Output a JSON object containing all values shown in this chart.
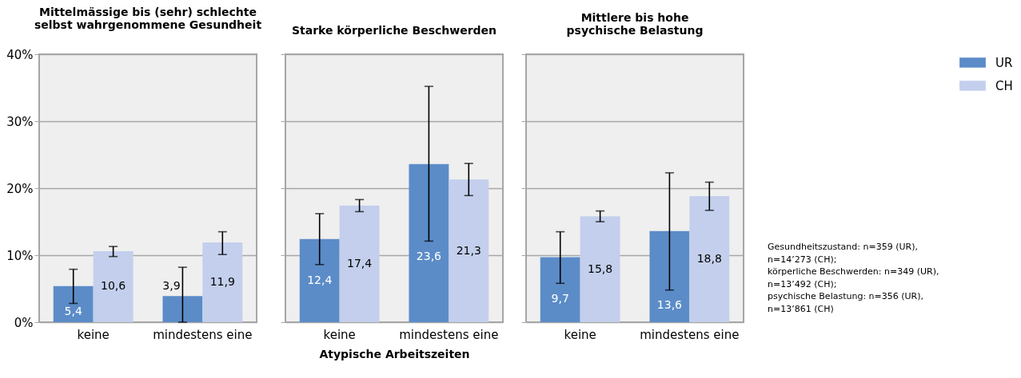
{
  "chart_data": [
    {
      "type": "bar",
      "title": "Mittelmässige bis (sehr) schlechte\nselbst wahrgenommene Gesundheit",
      "categories": [
        "keine",
        "mindestens eine"
      ],
      "series": [
        {
          "name": "UR",
          "color": "#5b8cc8",
          "values": [
            5.4,
            3.9
          ],
          "errors": [
            [
              2.8,
              7.9
            ],
            [
              0.0,
              8.2
            ]
          ],
          "value_labels": [
            "5,4",
            "3,9"
          ]
        },
        {
          "name": "CH",
          "color": "#c3cfec",
          "values": [
            10.6,
            11.9
          ],
          "errors": [
            [
              9.8,
              11.3
            ],
            [
              10.1,
              13.5
            ]
          ],
          "value_labels": [
            "10,6",
            "11,9"
          ]
        }
      ],
      "ylim": [
        0,
        40
      ],
      "yticks": [
        {
          "value": 0,
          "label": "0%"
        },
        {
          "value": 10,
          "label": "10%"
        },
        {
          "value": 20,
          "label": "20%"
        },
        {
          "value": 30,
          "label": "30%"
        },
        {
          "value": 40,
          "label": "40%"
        }
      ],
      "grid": "y",
      "legend": "right"
    },
    {
      "type": "bar",
      "title": "Starke körperliche Beschwerden",
      "xlabel": "Atypische Arbeitszeiten",
      "categories": [
        "keine",
        "mindestens eine"
      ],
      "series": [
        {
          "name": "UR",
          "color": "#5b8cc8",
          "values": [
            12.4,
            23.6
          ],
          "errors": [
            [
              8.6,
              16.2
            ],
            [
              12.1,
              35.2
            ]
          ],
          "value_labels": [
            "12,4",
            "23,6"
          ]
        },
        {
          "name": "CH",
          "color": "#c3cfec",
          "values": [
            17.4,
            21.3
          ],
          "errors": [
            [
              16.5,
              18.3
            ],
            [
              18.9,
              23.7
            ]
          ],
          "value_labels": [
            "17,4",
            "21,3"
          ]
        }
      ],
      "ylim": [
        0,
        40
      ],
      "yticks": [
        {
          "value": 0,
          "label": null
        },
        {
          "value": 10,
          "label": null
        },
        {
          "value": 20,
          "label": null
        },
        {
          "value": 30,
          "label": null
        },
        {
          "value": 40,
          "label": null
        }
      ],
      "grid": "y",
      "tick_labels": "x",
      "legend": "right"
    },
    {
      "type": "bar",
      "title": "Mittlere bis hohe\npsychische Belastung",
      "categories": [
        "keine",
        "mindestens eine"
      ],
      "series": [
        {
          "name": "UR",
          "color": "#5b8cc8",
          "values": [
            9.7,
            13.6
          ],
          "errors": [
            [
              5.8,
              13.5
            ],
            [
              4.8,
              22.3
            ]
          ],
          "value_labels": [
            "9,7",
            "13,6"
          ]
        },
        {
          "name": "CH",
          "color": "#c3cfec",
          "values": [
            15.8,
            18.8
          ],
          "errors": [
            [
              15.0,
              16.6
            ],
            [
              16.7,
              20.9
            ]
          ],
          "value_labels": [
            "15,8",
            "18,8"
          ]
        }
      ],
      "ylim": [
        0,
        40
      ],
      "yticks": [
        {
          "value": 0,
          "label": null
        },
        {
          "value": 10,
          "label": null
        },
        {
          "value": 20,
          "label": null
        },
        {
          "value": 30,
          "label": null
        },
        {
          "value": 40,
          "label": null
        }
      ],
      "grid": "y",
      "tick_labels": "x",
      "legend": "right",
      "annotations": [
        "Gesundheitszustand: n=359 (UR), n=14’273 (CH); körperliche Beschwerden: n=349 (UR), n=13’492 (CH); psychische Belastung: n=356 (UR), n=13’861 (CH)"
      ]
    }
  ]
}
